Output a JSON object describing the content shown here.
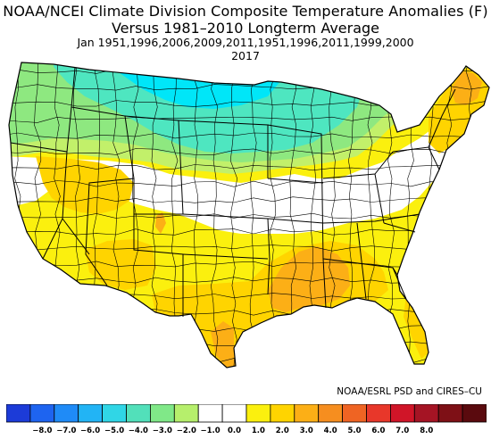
{
  "titles": {
    "line1": "NOAA/NCEI Climate Division Composite Temperature Anomalies (F)",
    "line2": "Versus 1981–2010 Longterm Average",
    "line3": "Jan   1951,1996,2006,2009,2011,1951,1996,2011,1999,2000",
    "line4": "2017"
  },
  "credit": "NOAA/ESRL PSD and CIRES–CU",
  "colorbar": {
    "tick_labels": [
      "−8.0",
      "−7.0",
      "−6.0",
      "−5.0",
      "−4.0",
      "−3.0",
      "−2.0",
      "−1.0",
      "0.0",
      "1.0",
      "2.0",
      "3.0",
      "4.0",
      "5.0",
      "6.0",
      "7.0",
      "8.0"
    ],
    "colors": [
      "#1c3bd8",
      "#1e64f0",
      "#1f8bf7",
      "#22b4f5",
      "#30d6e6",
      "#52e0ba",
      "#80e888",
      "#b6ef6c",
      "#ffffff",
      "#ffffff",
      "#fbf00e",
      "#ffd400",
      "#fcaf16",
      "#f68e1f",
      "#ef6423",
      "#e8372a",
      "#d01528",
      "#a51424",
      "#7e1016",
      "#5a0a0e"
    ]
  },
  "map": {
    "anomaly_colors": {
      "cold_3": "#00e6f8",
      "cold_2": "#4ee6c0",
      "cold_1": "#8ee880",
      "cold_0": "#c2f06a",
      "neutral": "#ffffff",
      "warm_1": "#fbf00e",
      "warm_2": "#ffd400",
      "warm_3": "#fcaf16"
    }
  }
}
